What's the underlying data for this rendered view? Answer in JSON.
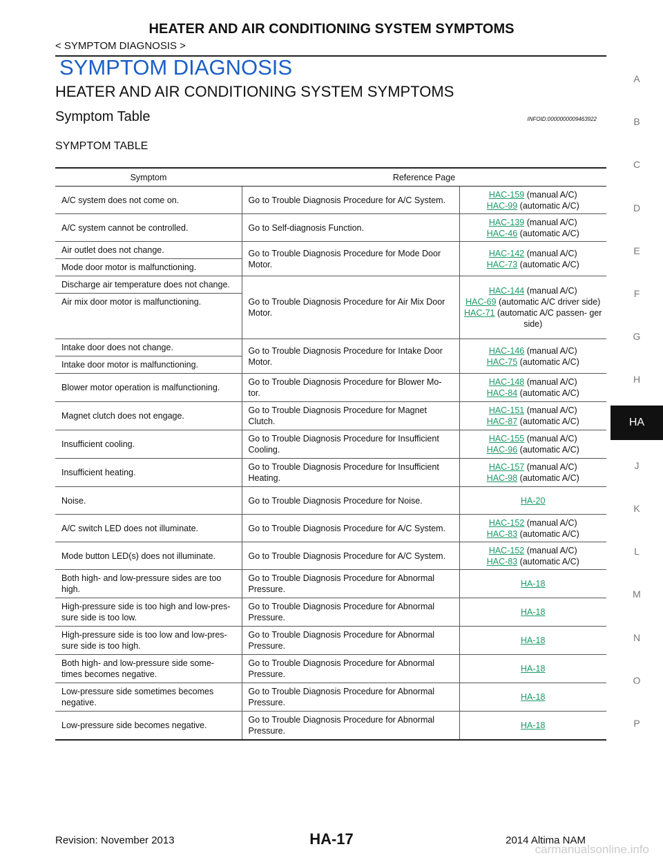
{
  "header": {
    "title": "HEATER AND AIR CONDITIONING SYSTEM SYMPTOMS",
    "breadcrumb": "< SYMPTOM DIAGNOSIS >"
  },
  "section": {
    "title": "SYMPTOM DIAGNOSIS",
    "subtitle": "HEATER AND AIR CONDITIONING SYSTEM SYMPTOMS",
    "heading": "Symptom Table",
    "infoid": "INFOID:0000000009463922",
    "table_title": "SYMPTOM TABLE"
  },
  "table": {
    "columns": [
      "Symptom",
      "Reference Page"
    ],
    "rows": [
      {
        "symptoms": [
          "A/C system does not come on."
        ],
        "procedure": "Go to Trouble Diagnosis Procedure for A/C System.",
        "refs": [
          {
            "link": "HAC-159",
            "note": "(manual A/C)"
          },
          {
            "link": "HAC-99",
            "note": "(automatic A/C)"
          }
        ]
      },
      {
        "symptoms": [
          "A/C system cannot be controlled."
        ],
        "procedure": "Go to Self-diagnosis Function.",
        "refs": [
          {
            "link": "HAC-139",
            "note": "(manual A/C)"
          },
          {
            "link": "HAC-46",
            "note": "(automatic A/C)"
          }
        ]
      },
      {
        "symptoms": [
          "Air outlet does not change.",
          "Mode door motor is malfunctioning."
        ],
        "procedure": "Go to Trouble Diagnosis Procedure for Mode Door Motor.",
        "refs": [
          {
            "link": "HAC-142",
            "note": "(manual A/C)"
          },
          {
            "link": "HAC-73",
            "note": "(automatic A/C)"
          }
        ]
      },
      {
        "symptoms": [
          "Discharge air temperature does not change.",
          "Air mix door motor is malfunctioning."
        ],
        "procedure": "Go to Trouble Diagnosis Procedure for Air Mix Door Motor.",
        "refs": [
          {
            "link": "HAC-144",
            "note": "(manual A/C)"
          },
          {
            "link": "HAC-69",
            "note": "(automatic A/C driver side)"
          },
          {
            "link": "HAC-71",
            "note": "(automatic A/C passen- ger side)"
          }
        ]
      },
      {
        "symptoms": [
          "Intake door does not change.",
          "Intake door motor is malfunctioning."
        ],
        "procedure": "Go to Trouble Diagnosis Procedure for Intake Door Motor.",
        "refs": [
          {
            "link": "HAC-146",
            "note": "(manual A/C)"
          },
          {
            "link": "HAC-75",
            "note": "(automatic A/C)"
          }
        ]
      },
      {
        "symptoms": [
          "Blower motor operation is malfunctioning."
        ],
        "procedure": "Go to Trouble Diagnosis Procedure for Blower Mo- tor.",
        "refs": [
          {
            "link": "HAC-148",
            "note": "(manual A/C)"
          },
          {
            "link": "HAC-84",
            "note": "(automatic A/C)"
          }
        ]
      },
      {
        "symptoms": [
          "Magnet clutch does not engage."
        ],
        "procedure": "Go to Trouble Diagnosis Procedure for Magnet Clutch.",
        "refs": [
          {
            "link": "HAC-151",
            "note": "(manual A/C)"
          },
          {
            "link": "HAC-87",
            "note": "(automatic A/C)"
          }
        ]
      },
      {
        "symptoms": [
          "Insufficient cooling."
        ],
        "procedure": "Go to Trouble Diagnosis Procedure for Insufficient Cooling.",
        "refs": [
          {
            "link": "HAC-155",
            "note": "(manual A/C)"
          },
          {
            "link": "HAC-96",
            "note": "(automatic A/C)"
          }
        ]
      },
      {
        "symptoms": [
          "Insufficient heating."
        ],
        "procedure": "Go to Trouble Diagnosis Procedure for Insufficient Heating.",
        "refs": [
          {
            "link": "HAC-157",
            "note": "(manual A/C)"
          },
          {
            "link": "HAC-98",
            "note": "(automatic A/C)"
          }
        ]
      },
      {
        "symptoms": [
          "Noise."
        ],
        "procedure": "Go to Trouble Diagnosis Procedure for Noise.",
        "refs": [
          {
            "link": "HA-20"
          }
        ]
      },
      {
        "symptoms": [
          "A/C switch LED does not illuminate."
        ],
        "procedure": "Go to Trouble Diagnosis Procedure for A/C System.",
        "refs": [
          {
            "link": "HAC-152",
            "note": "(manual A/C)"
          },
          {
            "link": "HAC-83",
            "note": "(automatic A/C)"
          }
        ]
      },
      {
        "symptoms": [
          "Mode button LED(s) does not illuminate."
        ],
        "procedure": "Go to Trouble Diagnosis Procedure for A/C System.",
        "refs": [
          {
            "link": "HAC-152",
            "note": "(manual A/C)"
          },
          {
            "link": "HAC-83",
            "note": "(automatic A/C)"
          }
        ]
      },
      {
        "symptoms": [
          "Both high- and low-pressure sides are too high."
        ],
        "procedure": "Go to Trouble Diagnosis Procedure for Abnormal Pressure.",
        "refs": [
          {
            "link": "HA-18"
          }
        ]
      },
      {
        "symptoms": [
          "High-pressure side is too high and low-pres- sure side is too low."
        ],
        "procedure": "Go to Trouble Diagnosis Procedure for Abnormal Pressure.",
        "refs": [
          {
            "link": "HA-18"
          }
        ]
      },
      {
        "symptoms": [
          "High-pressure side is too low and low-pres- sure side is too high."
        ],
        "procedure": "Go to Trouble Diagnosis Procedure for Abnormal Pressure.",
        "refs": [
          {
            "link": "HA-18"
          }
        ]
      },
      {
        "symptoms": [
          "Both high- and low-pressure side some- times becomes negative."
        ],
        "procedure": "Go to Trouble Diagnosis Procedure for Abnormal Pressure.",
        "refs": [
          {
            "link": "HA-18"
          }
        ]
      },
      {
        "symptoms": [
          "Low-pressure side sometimes becomes negative."
        ],
        "procedure": "Go to Trouble Diagnosis Procedure for Abnormal Pressure.",
        "refs": [
          {
            "link": "HA-18"
          }
        ]
      },
      {
        "symptoms": [
          "Low-pressure side becomes negative."
        ],
        "procedure": "Go to Trouble Diagnosis Procedure for Abnormal Pressure.",
        "refs": [
          {
            "link": "HA-18"
          }
        ]
      }
    ]
  },
  "side_tabs": {
    "items": [
      "A",
      "B",
      "C",
      "D",
      "E",
      "F",
      "G",
      "H",
      "HA",
      "J",
      "K",
      "L",
      "M",
      "N",
      "O",
      "P"
    ],
    "active": "HA"
  },
  "footer": {
    "revision": "Revision: November 2013",
    "page": "HA-17",
    "model": "2014 Altima NAM",
    "watermark": "carmanualsonline.info"
  }
}
